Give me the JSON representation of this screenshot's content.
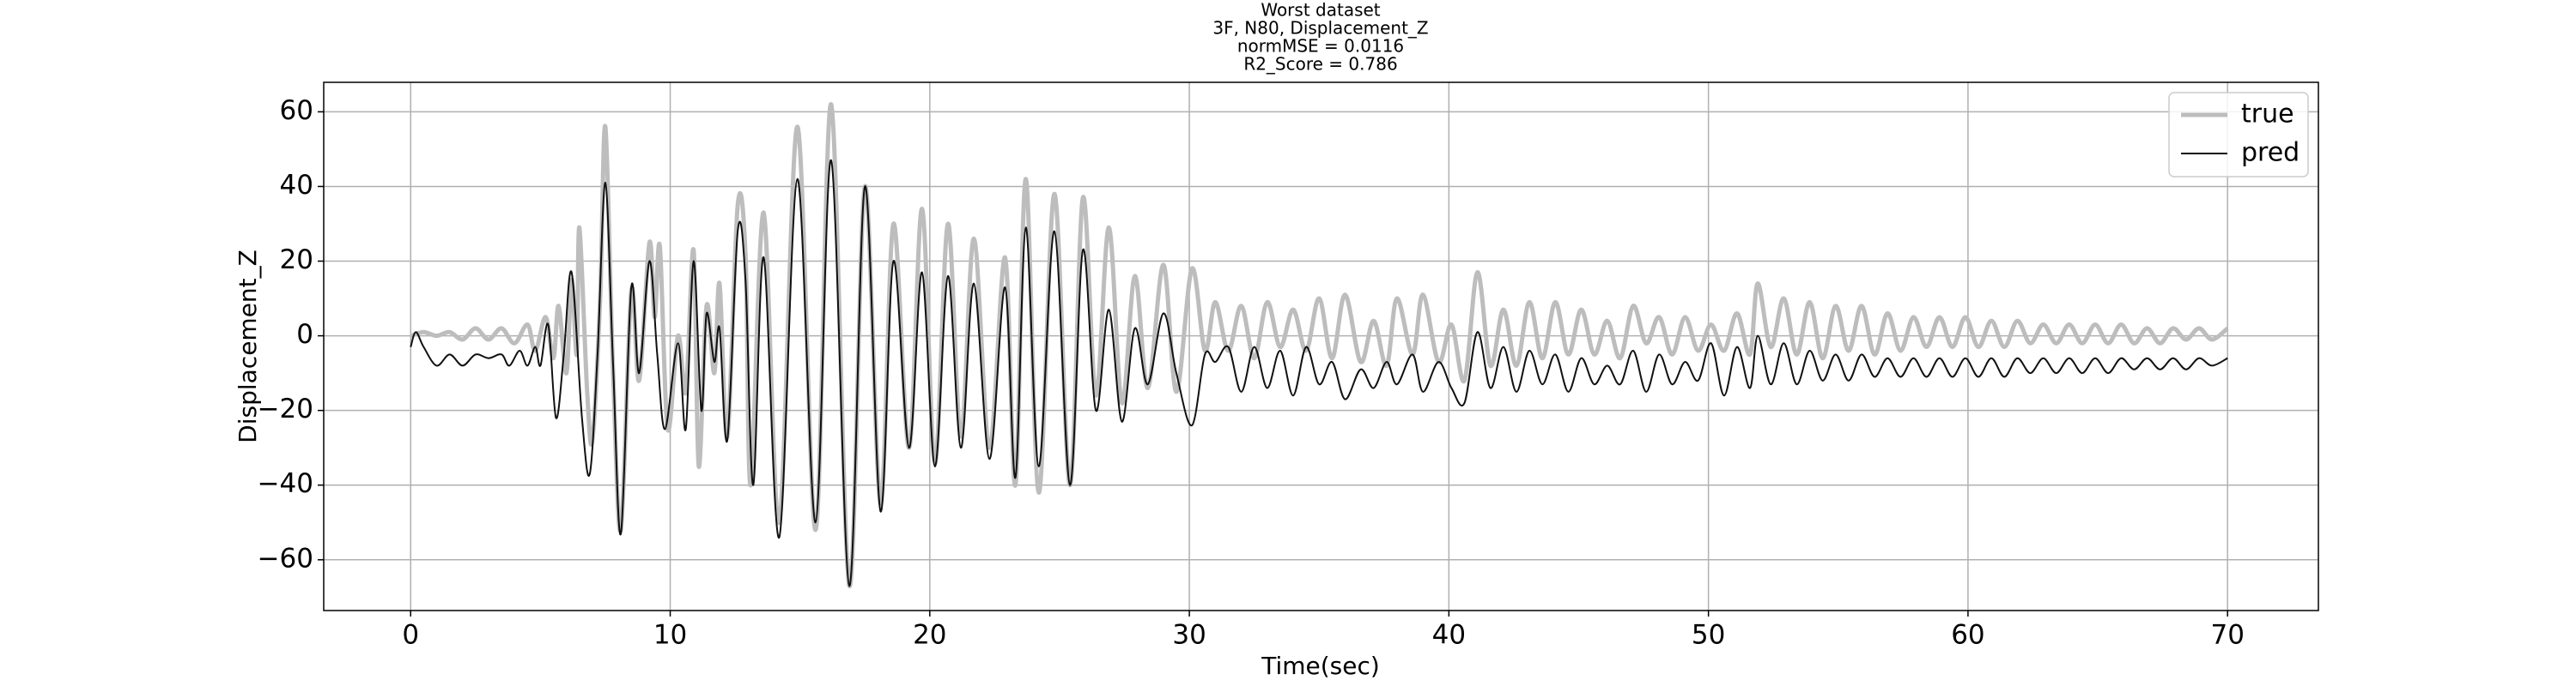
{
  "chart_data": {
    "type": "line",
    "title": [
      "Worst dataset",
      "3F, N80, Displacement_Z",
      "normMSE = 0.0116",
      "R2_Score = 0.786"
    ],
    "x_label": "Time(sec)",
    "y_label": "Displacement_Z",
    "xlim": [
      -3.35,
      73.5
    ],
    "ylim": [
      -73.6,
      67.9
    ],
    "xticks": [
      0,
      10,
      20,
      30,
      40,
      50,
      60,
      70
    ],
    "yticks": [
      {
        "value": -60,
        "label": "−60"
      },
      {
        "value": -40,
        "label": "−40"
      },
      {
        "value": -20,
        "label": "−20"
      },
      0,
      20,
      40,
      60
    ],
    "grid": true,
    "legend": "upper right",
    "series": [
      {
        "name": "true",
        "color": "#bdbdbd",
        "width": 5,
        "x": [
          0,
          0.5,
          1,
          1.5,
          2,
          2.5,
          3,
          3.5,
          4,
          4.5,
          4.8,
          5.2,
          5.5,
          5.7,
          6.0,
          6.2,
          6.4,
          6.5,
          6.8,
          7.0,
          7.3,
          7.5,
          7.8,
          8.1,
          8.5,
          8.8,
          9.2,
          9.4,
          9.6,
          9.9,
          10.3,
          10.6,
          10.9,
          11.1,
          11.4,
          11.7,
          11.9,
          12.2,
          12.6,
          12.9,
          13.1,
          13.6,
          14.2,
          14.9,
          15.6,
          16.2,
          16.9,
          17.5,
          18.1,
          18.6,
          19.2,
          19.7,
          20.2,
          20.7,
          21.2,
          21.7,
          22.3,
          22.9,
          23.3,
          23.7,
          24.2,
          24.8,
          25.4,
          25.9,
          26.4,
          26.9,
          27.4,
          27.9,
          28.4,
          29.0,
          29.5,
          30.1,
          30.6,
          31.0,
          31.5,
          32.0,
          32.5,
          33.0,
          33.5,
          34.0,
          34.5,
          35.0,
          35.5,
          36.0,
          36.6,
          37.1,
          37.6,
          38.0,
          38.6,
          39.0,
          39.6,
          40.1,
          40.6,
          41.1,
          41.6,
          42.1,
          42.6,
          43.1,
          43.6,
          44.1,
          44.6,
          45.1,
          45.6,
          46.1,
          46.6,
          47.1,
          47.6,
          48.1,
          48.6,
          49.1,
          49.6,
          50.1,
          50.6,
          51.1,
          51.6,
          51.9,
          52.4,
          52.9,
          53.4,
          53.9,
          54.4,
          54.9,
          55.4,
          55.9,
          56.4,
          56.9,
          57.4,
          57.9,
          58.4,
          58.9,
          59.4,
          59.9,
          60.4,
          60.9,
          61.4,
          61.9,
          62.4,
          62.9,
          63.4,
          63.9,
          64.4,
          64.9,
          65.4,
          65.9,
          66.4,
          66.9,
          67.4,
          67.9,
          68.4,
          68.9,
          69.4,
          70
        ],
        "values": [
          0,
          1,
          0,
          1,
          -1,
          2,
          -1,
          2,
          -2,
          3,
          -4,
          5,
          -6,
          8,
          -10,
          15,
          -5,
          29,
          -15,
          -28,
          10,
          56,
          -10,
          -52,
          12,
          -12,
          25,
          5,
          24,
          -25,
          0,
          -15,
          23,
          -35,
          8,
          -10,
          14,
          -27,
          35,
          22,
          -40,
          33,
          -50,
          56,
          -52,
          62,
          -67,
          40,
          -45,
          30,
          -30,
          34,
          -34,
          30,
          -27,
          26,
          -30,
          21,
          -40,
          42,
          -42,
          38,
          -40,
          37,
          -16,
          29,
          -18,
          16,
          -14,
          19,
          -15,
          18,
          -4,
          9,
          -4,
          8,
          -6,
          9,
          -3,
          7,
          -4,
          10,
          -6,
          11,
          -7,
          4,
          -8,
          10,
          -5,
          11,
          -7,
          3,
          -12,
          17,
          -8,
          7,
          -8,
          9,
          -6,
          9,
          -5,
          7,
          -5,
          4,
          -6,
          8,
          -2,
          5,
          -5,
          5,
          -4,
          3,
          -4,
          6,
          -5,
          14,
          -3,
          10,
          -5,
          9,
          -6,
          8,
          -4,
          8,
          -5,
          6,
          -4,
          5,
          -3,
          5,
          -3,
          5,
          -3,
          4,
          -3,
          4,
          -2,
          3,
          -2,
          3,
          -2,
          3,
          -2,
          3,
          -2,
          2,
          -2,
          2,
          -1,
          2,
          -1,
          2
        ]
      },
      {
        "name": "pred",
        "color": "#111111",
        "width": 2,
        "x": [
          0,
          0.2,
          0.5,
          1.0,
          1.5,
          2.0,
          2.5,
          3.0,
          3.5,
          3.8,
          4.2,
          4.5,
          4.8,
          5.0,
          5.3,
          5.6,
          5.9,
          6.2,
          6.6,
          6.9,
          7.2,
          7.5,
          7.8,
          8.1,
          8.5,
          8.8,
          9.2,
          9.5,
          9.8,
          10.3,
          10.6,
          10.9,
          11.2,
          11.4,
          11.7,
          11.9,
          12.2,
          12.6,
          12.9,
          13.2,
          13.6,
          14.2,
          14.9,
          15.6,
          16.2,
          16.9,
          17.5,
          18.1,
          18.6,
          19.2,
          19.7,
          20.2,
          20.7,
          21.2,
          21.7,
          22.3,
          22.9,
          23.3,
          23.7,
          24.2,
          24.8,
          25.4,
          25.9,
          26.4,
          26.9,
          27.4,
          27.9,
          28.4,
          29.0,
          29.5,
          30.1,
          30.6,
          31.0,
          31.5,
          32.0,
          32.5,
          33.0,
          33.5,
          34.0,
          34.5,
          35.0,
          35.5,
          36.0,
          36.6,
          37.1,
          37.6,
          38.0,
          38.6,
          39.0,
          39.6,
          40.1,
          40.6,
          41.1,
          41.6,
          42.1,
          42.6,
          43.1,
          43.6,
          44.1,
          44.6,
          45.1,
          45.6,
          46.1,
          46.6,
          47.1,
          47.6,
          48.1,
          48.6,
          49.1,
          49.6,
          50.1,
          50.6,
          51.1,
          51.6,
          51.9,
          52.4,
          52.9,
          53.4,
          53.9,
          54.4,
          54.9,
          55.4,
          55.9,
          56.4,
          56.9,
          57.4,
          57.9,
          58.4,
          58.9,
          59.4,
          59.9,
          60.4,
          60.9,
          61.4,
          61.9,
          62.4,
          62.9,
          63.4,
          63.9,
          64.4,
          64.9,
          65.4,
          65.9,
          66.4,
          66.9,
          67.4,
          67.9,
          68.4,
          68.9,
          69.4,
          70
        ],
        "values": [
          -3,
          1,
          -3,
          -8,
          -5,
          -8,
          -5,
          -6,
          -5,
          -8,
          -4,
          -8,
          -3,
          -8,
          3,
          -22,
          -5,
          17,
          -22,
          -37,
          -5,
          41,
          -8,
          -53,
          13,
          -10,
          20,
          -5,
          -25,
          -2,
          -25,
          20,
          -20,
          6,
          -7,
          2,
          -28,
          28,
          15,
          -40,
          21,
          -54,
          42,
          -50,
          47,
          -67,
          40,
          -47,
          20,
          -30,
          17,
          -35,
          16,
          -30,
          14,
          -33,
          13,
          -38,
          29,
          -35,
          28,
          -40,
          23,
          -20,
          7,
          -23,
          2,
          -13,
          6,
          -10,
          -24,
          -5,
          -7,
          -3,
          -15,
          -3,
          -14,
          -4,
          -16,
          -3,
          -13,
          -7,
          -17,
          -9,
          -14,
          -7,
          -13,
          -5,
          -15,
          -7,
          -14,
          -18,
          1,
          -14,
          -3,
          -15,
          -4,
          -13,
          -5,
          -15,
          -6,
          -13,
          -8,
          -13,
          -4,
          -15,
          -5,
          -13,
          -7,
          -12,
          -2,
          -16,
          -3,
          -14,
          0,
          -13,
          -2,
          -13,
          -4,
          -12,
          -5,
          -12,
          -5,
          -11,
          -6,
          -11,
          -6,
          -11,
          -6,
          -11,
          -6,
          -11,
          -6,
          -11,
          -6,
          -10,
          -6,
          -10,
          -6,
          -10,
          -6,
          -10,
          -6,
          -9,
          -6,
          -9,
          -6,
          -9,
          -6,
          -8,
          -6
        ]
      }
    ]
  }
}
